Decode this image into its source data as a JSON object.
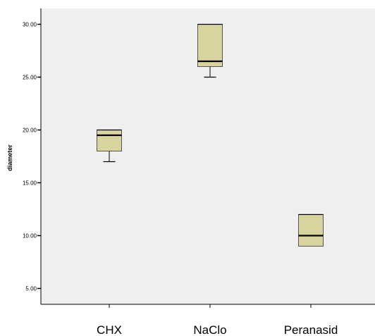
{
  "chart_data": {
    "type": "box",
    "title": "",
    "ylabel": "diameter",
    "xlabel": "",
    "ylim": [
      3.5,
      31.5
    ],
    "yticks": [
      5,
      10,
      15,
      20,
      25,
      30
    ],
    "ytick_labels": [
      "5.00",
      "10.00",
      "15.00",
      "20.00",
      "25.00",
      "30.00"
    ],
    "categories": [
      "CHX",
      "NaClo",
      "Peranasid"
    ],
    "boxes": [
      {
        "category": "CHX",
        "min": 17,
        "q1": 18,
        "median": 19.5,
        "q3": 20,
        "max": 20
      },
      {
        "category": "NaClo",
        "min": 25,
        "q1": 26,
        "median": 26.5,
        "q3": 30,
        "max": 30
      },
      {
        "category": "Peranasid",
        "min": 9,
        "q1": 9,
        "median": 10,
        "q3": 12,
        "max": 12
      }
    ],
    "grid": false,
    "colors": {
      "box_fill": "#d9d3a0",
      "plot_bg": "#efefef",
      "stroke": "#000000"
    }
  }
}
